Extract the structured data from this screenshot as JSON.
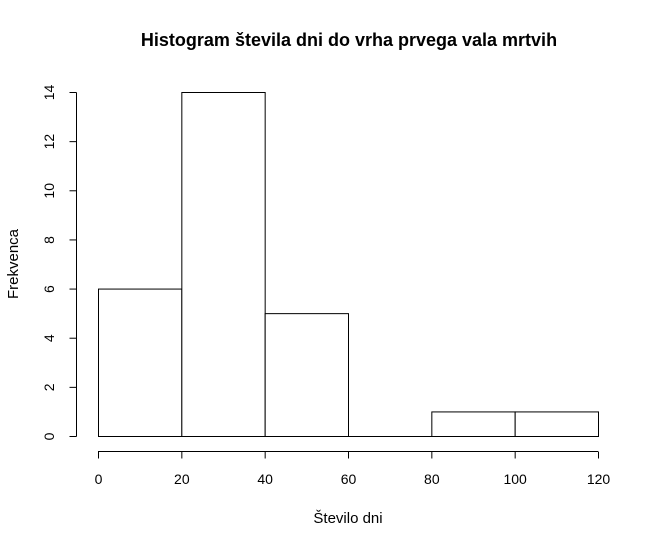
{
  "chart_data": {
    "type": "bar",
    "title": "Histogram števila dni do vrha prvega vala mrtvih",
    "xlabel": "Število dni",
    "ylabel": "Frekvenca",
    "bins": [
      {
        "from": 0,
        "to": 20,
        "count": 6
      },
      {
        "from": 20,
        "to": 40,
        "count": 14
      },
      {
        "from": 40,
        "to": 60,
        "count": 5
      },
      {
        "from": 60,
        "to": 80,
        "count": 0
      },
      {
        "from": 80,
        "to": 100,
        "count": 1
      },
      {
        "from": 100,
        "to": 120,
        "count": 1
      }
    ],
    "xlim": [
      0,
      120
    ],
    "ylim": [
      0,
      14
    ],
    "xticks": [
      0,
      20,
      40,
      60,
      80,
      100,
      120
    ],
    "yticks": [
      0,
      2,
      4,
      6,
      8,
      10,
      12,
      14
    ],
    "grid": false,
    "legend": "none"
  }
}
